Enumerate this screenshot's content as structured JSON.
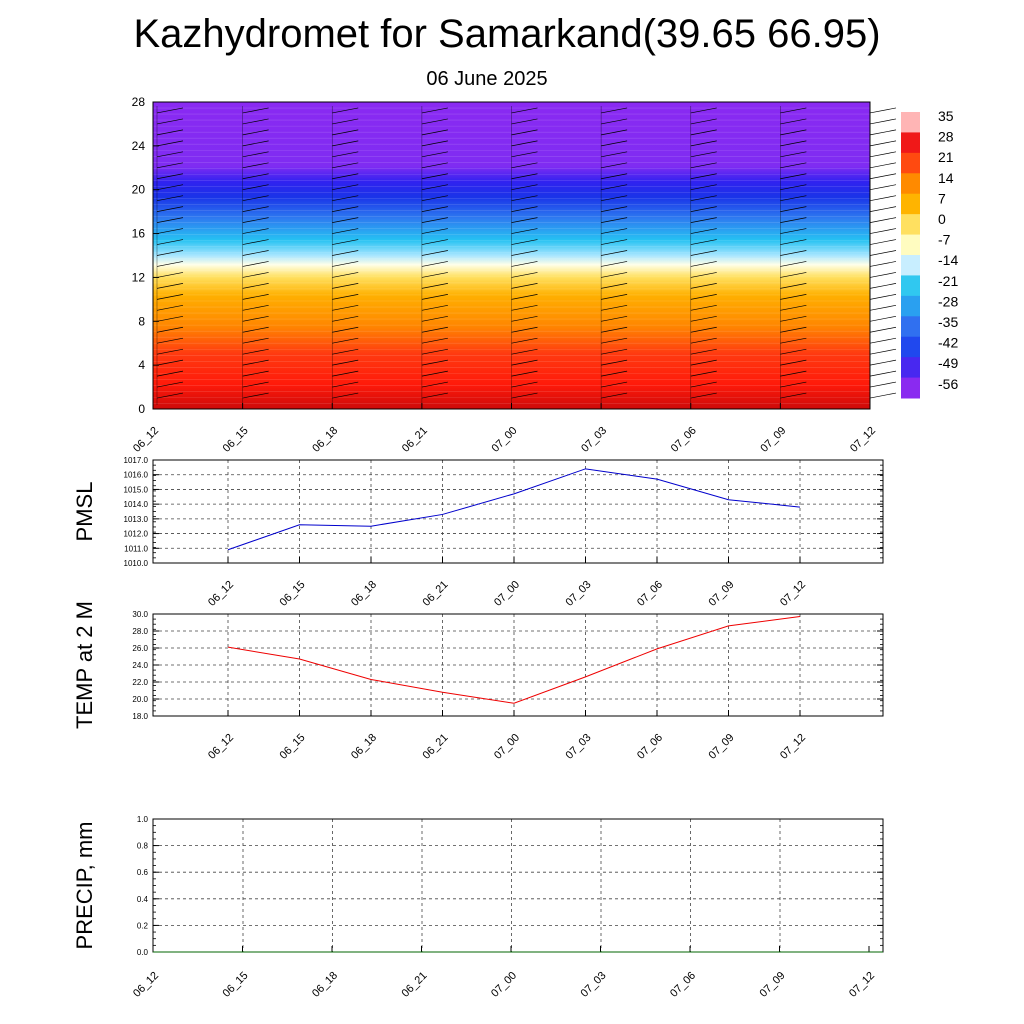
{
  "title": "Kazhydromet for Samarkand(39.65 66.95)",
  "subtitle": "06 June 2025",
  "colorbar": {
    "labels": [
      "35",
      "28",
      "21",
      "14",
      "7",
      "0",
      "-7",
      "-14",
      "-21",
      "-28",
      "-35",
      "-42",
      "-49",
      "-56"
    ],
    "colors": [
      "#ffb5b5",
      "#f01818",
      "#ff4a10",
      "#ff8a00",
      "#ffb400",
      "#ffe060",
      "#fffcc0",
      "#c8eeff",
      "#30c8f0",
      "#2aa0f0",
      "#3070f0",
      "#2048ee",
      "#4828f0",
      "#8a2af0"
    ]
  },
  "chart_data": [
    {
      "type": "heatmap",
      "x": [
        "06_12",
        "06_15",
        "06_18",
        "06_21",
        "07_00",
        "07_03",
        "07_06",
        "07_09",
        "07_12"
      ],
      "ylim": [
        0,
        28
      ],
      "yticks": [
        "0",
        "4",
        "8",
        "12",
        "16",
        "20",
        "24",
        "28"
      ],
      "zlim": [
        -56,
        35
      ],
      "grid": false
    },
    {
      "type": "line",
      "ylabel": "PMSL",
      "x": [
        "06_12",
        "06_15",
        "06_18",
        "06_21",
        "07_00",
        "07_03",
        "07_06",
        "07_09",
        "07_12"
      ],
      "yticks": [
        "1010.0",
        "1011.0",
        "1012.0",
        "1013.0",
        "1014.0",
        "1015.0",
        "1016.0",
        "1017.0"
      ],
      "ylim": [
        1010,
        1017
      ],
      "series": [
        {
          "values": [
            1010.9,
            1012.6,
            1012.5,
            1013.3,
            1014.7,
            1016.4,
            1015.7,
            1014.3,
            1013.8
          ],
          "color": "#0000cc"
        }
      ],
      "grid": true
    },
    {
      "type": "line",
      "ylabel": "TEMP at 2 M",
      "x": [
        "06_12",
        "06_15",
        "06_18",
        "06_21",
        "07_00",
        "07_03",
        "07_06",
        "07_09",
        "07_12"
      ],
      "yticks": [
        "18.0",
        "20.0",
        "22.0",
        "24.0",
        "26.0",
        "28.0",
        "30.0"
      ],
      "ylim": [
        18,
        30
      ],
      "series": [
        {
          "values": [
            26.1,
            24.7,
            22.3,
            20.8,
            19.5,
            22.6,
            25.9,
            28.6,
            29.7
          ],
          "color": "#ee0000"
        }
      ],
      "grid": true
    },
    {
      "type": "line",
      "ylabel": "PRECIP, mm",
      "x": [
        "06_12",
        "06_15",
        "06_18",
        "06_21",
        "07_00",
        "07_03",
        "07_06",
        "07_09",
        "07_12"
      ],
      "yticks": [
        "0.0",
        "0.2",
        "0.4",
        "0.6",
        "0.8",
        "1.0"
      ],
      "ylim": [
        0,
        1
      ],
      "series": [
        {
          "values": [
            0,
            0,
            0,
            0,
            0,
            0,
            0,
            0,
            0
          ],
          "color": "#006600"
        }
      ],
      "grid": true
    }
  ]
}
